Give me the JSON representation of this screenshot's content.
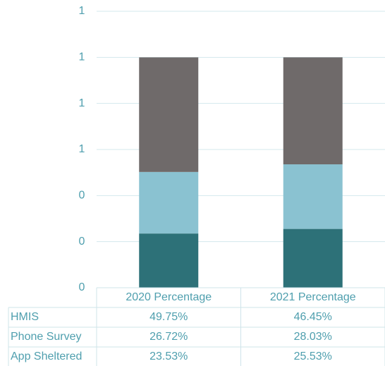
{
  "chart_data": {
    "type": "stacked_bar",
    "categories": [
      "2020 Percentage",
      "2021 Percentage"
    ],
    "series": [
      {
        "name": "HMIS",
        "color": "#6f6a6a",
        "values": [
          0.4975,
          0.4645
        ],
        "value_labels": [
          "49.75%",
          "46.45%"
        ]
      },
      {
        "name": "Phone Survey",
        "color": "#8ac2d1",
        "values": [
          0.2672,
          0.2803
        ],
        "value_labels": [
          "26.72%",
          "28.03%"
        ]
      },
      {
        "name": "App Sheltered",
        "color": "#2d7178",
        "values": [
          0.2353,
          0.2553
        ],
        "value_labels": [
          "23.53%",
          "25.53%"
        ]
      }
    ],
    "ylim": [
      0,
      1.2
    ],
    "yticks": [
      0,
      {
        "value": 0.2,
        "label": "0"
      },
      {
        "value": 0.4,
        "label": "0"
      },
      {
        "value": 0.6,
        "label": "1"
      },
      {
        "value": 0.8,
        "label": "1"
      },
      {
        "value": 1.0,
        "label": "1"
      },
      {
        "value": 1.2,
        "label": "1"
      }
    ],
    "grid": true
  }
}
